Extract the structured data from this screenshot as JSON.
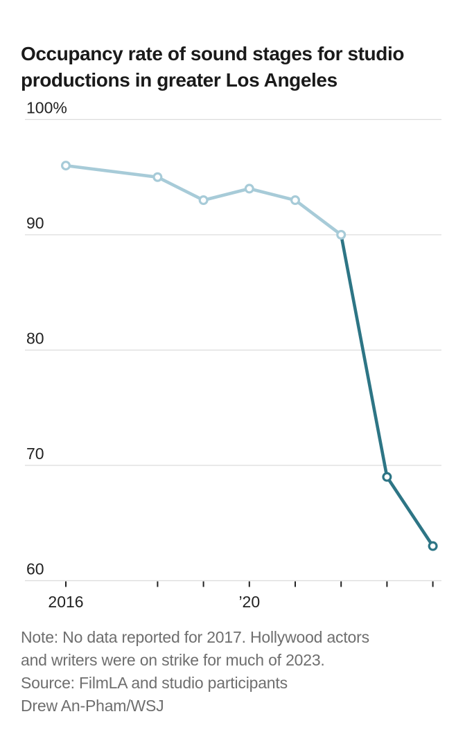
{
  "header": {
    "title_lines": [
      "Occupancy rate of sound stages for studio",
      "productions in greater Los Angeles"
    ]
  },
  "chart_data": {
    "type": "line",
    "title": "Occupancy rate of sound stages for studio productions in greater Los Angeles",
    "x": [
      2016,
      2018,
      2019,
      2020,
      2021,
      2022,
      2023,
      2024
    ],
    "values": [
      96,
      95,
      93,
      94,
      93,
      90,
      69,
      63
    ],
    "units": "percent",
    "missing_years": [
      2017
    ],
    "segments": [
      {
        "name": "2016 to 2022",
        "color": "#a7cbd8",
        "from_year": 2016,
        "to_year": 2022
      },
      {
        "name": "2022 to 2024",
        "color": "#2d7585",
        "from_year": 2022,
        "to_year": 2024
      }
    ],
    "marker": "open-circle",
    "ylim": [
      60,
      100
    ],
    "yticks": [
      100,
      90,
      80,
      70,
      60
    ],
    "ytick_labels": [
      "100%",
      "90",
      "80",
      "70",
      "60"
    ],
    "xticks": [
      2016,
      2018,
      2019,
      2020,
      2021,
      2022,
      2023,
      2024
    ],
    "xtick_labels": [
      {
        "year": 2016,
        "label": "2016"
      },
      {
        "year": 2020,
        "label": "’20"
      }
    ],
    "xlabel": "",
    "ylabel": "",
    "grid": "horizontal",
    "legend": "none"
  },
  "footer": {
    "lines": [
      "Note: No data reported for 2017. Hollywood actors",
      "and writers were on strike for much of 2023.",
      "Source: FilmLA and studio participants",
      "Drew An-Pham/WSJ"
    ]
  },
  "colors": {
    "background": "#ffffff",
    "title_text": "#1a1a1a",
    "footer_text": "#6e6e6e",
    "grid_line": "#dcdcdc",
    "axis_line": "#dcdcdc",
    "tick_mark": "#222222",
    "axis_label": "#222222",
    "early_series": "#a7cbd8",
    "late_series": "#2d7585",
    "marker_fill": "#ffffff"
  }
}
